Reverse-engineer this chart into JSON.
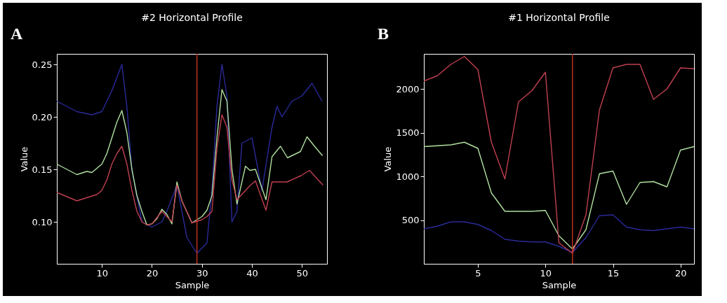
{
  "chart_data": [
    {
      "type": "line",
      "title": "#2 Horizontal Profile",
      "xlabel": "Sample",
      "ylabel": "Value",
      "annotations": [
        "A"
      ],
      "xlim": [
        1,
        55
      ],
      "xticks": [
        10,
        20,
        30,
        40,
        50
      ],
      "ylim": [
        0.06,
        0.26
      ],
      "yticks": [
        {
          "value": 0.1,
          "label": "0.10"
        },
        0.15,
        {
          "value": 0.2,
          "label": "0.20"
        },
        0.25
      ],
      "series": [
        {
          "color": "#2a2a9a",
          "x": [
            1,
            3,
            5,
            8,
            10,
            12,
            14,
            15,
            16,
            18,
            20,
            22,
            23,
            25,
            27,
            29,
            31,
            32,
            33,
            34,
            35,
            36,
            37,
            38,
            40,
            42,
            44,
            45,
            46,
            48,
            50,
            52,
            54
          ],
          "values": [
            0.215,
            0.21,
            0.205,
            0.202,
            0.205,
            0.225,
            0.25,
            0.21,
            0.15,
            0.1,
            0.095,
            0.1,
            0.11,
            0.135,
            0.085,
            0.07,
            0.08,
            0.13,
            0.21,
            0.25,
            0.22,
            0.1,
            0.11,
            0.175,
            0.18,
            0.13,
            0.19,
            0.21,
            0.2,
            0.215,
            0.22,
            0.232,
            0.215
          ]
        },
        {
          "color": "#b0e0a0",
          "x": [
            1,
            3,
            5,
            7,
            8,
            10,
            11,
            12,
            13,
            14,
            15,
            16,
            17,
            18,
            19,
            20,
            21,
            22,
            23,
            24,
            25,
            26,
            28,
            30,
            31,
            32,
            33,
            34,
            35,
            36,
            37,
            38.7,
            39.6,
            40.7,
            42.8,
            44,
            45.7,
            47.1,
            49.7,
            51,
            52.5,
            54.1
          ],
          "values": [
            0.155,
            0.15,
            0.145,
            0.148,
            0.147,
            0.155,
            0.165,
            0.18,
            0.195,
            0.206,
            0.185,
            0.15,
            0.125,
            0.11,
            0.097,
            0.098,
            0.103,
            0.112,
            0.107,
            0.098,
            0.138,
            0.12,
            0.099,
            0.105,
            0.111,
            0.125,
            0.18,
            0.226,
            0.215,
            0.15,
            0.117,
            0.153,
            0.149,
            0.15,
            0.121,
            0.162,
            0.172,
            0.161,
            0.167,
            0.181,
            0.172,
            0.163
          ]
        },
        {
          "color": "#c04050",
          "x": [
            1,
            3,
            5,
            7,
            9,
            10,
            11,
            12,
            13,
            14,
            15,
            16,
            17,
            18,
            19,
            20,
            22,
            24,
            25,
            26,
            28,
            30,
            31,
            32,
            33,
            34,
            35,
            36,
            37,
            39.5,
            40.7,
            42.8,
            44,
            47,
            49.8,
            51.5,
            54.2
          ],
          "values": [
            0.128,
            0.124,
            0.12,
            0.123,
            0.126,
            0.13,
            0.14,
            0.155,
            0.165,
            0.172,
            0.155,
            0.13,
            0.11,
            0.1,
            0.097,
            0.098,
            0.11,
            0.1,
            0.135,
            0.12,
            0.099,
            0.102,
            0.105,
            0.11,
            0.17,
            0.202,
            0.19,
            0.14,
            0.121,
            0.134,
            0.139,
            0.111,
            0.138,
            0.138,
            0.144,
            0.149,
            0.135
          ]
        }
      ],
      "ref_lines": [
        {
          "axis": "x",
          "value": 29,
          "color": "#c03020"
        }
      ]
    },
    {
      "type": "line",
      "title": "#1 Horizontal Profile",
      "xlabel": "Sample",
      "ylabel": "Value",
      "annotations": [
        "B"
      ],
      "x": [
        1,
        2,
        3,
        4,
        5,
        6,
        7,
        8,
        9,
        10,
        11,
        12,
        13,
        14,
        15,
        16,
        17,
        18,
        19,
        20,
        21
      ],
      "xlim": [
        1,
        21
      ],
      "xticks": [
        5,
        10,
        15,
        20
      ],
      "ylim": [
        0,
        2400
      ],
      "yticks": [
        500,
        1000,
        1500,
        2000
      ],
      "series": [
        {
          "color": "#2a2a9a",
          "values": [
            400,
            430,
            480,
            480,
            450,
            380,
            280,
            260,
            250,
            250,
            200,
            130,
            300,
            550,
            560,
            420,
            390,
            380,
            400,
            420,
            400
          ]
        },
        {
          "color": "#b0e0a0",
          "values": [
            1340,
            1350,
            1360,
            1390,
            1320,
            810,
            600,
            600,
            600,
            610,
            320,
            170,
            390,
            1030,
            1060,
            680,
            930,
            940,
            880,
            1300,
            1340
          ]
        },
        {
          "color": "#c04050",
          "values": [
            2090,
            2150,
            2280,
            2370,
            2220,
            1390,
            970,
            1850,
            1980,
            2190,
            240,
            120,
            560,
            1760,
            2240,
            2280,
            2280,
            1880,
            2000,
            2240,
            2230
          ]
        }
      ],
      "ref_lines": [
        {
          "axis": "x",
          "value": 12,
          "color": "#c03020"
        }
      ]
    }
  ]
}
